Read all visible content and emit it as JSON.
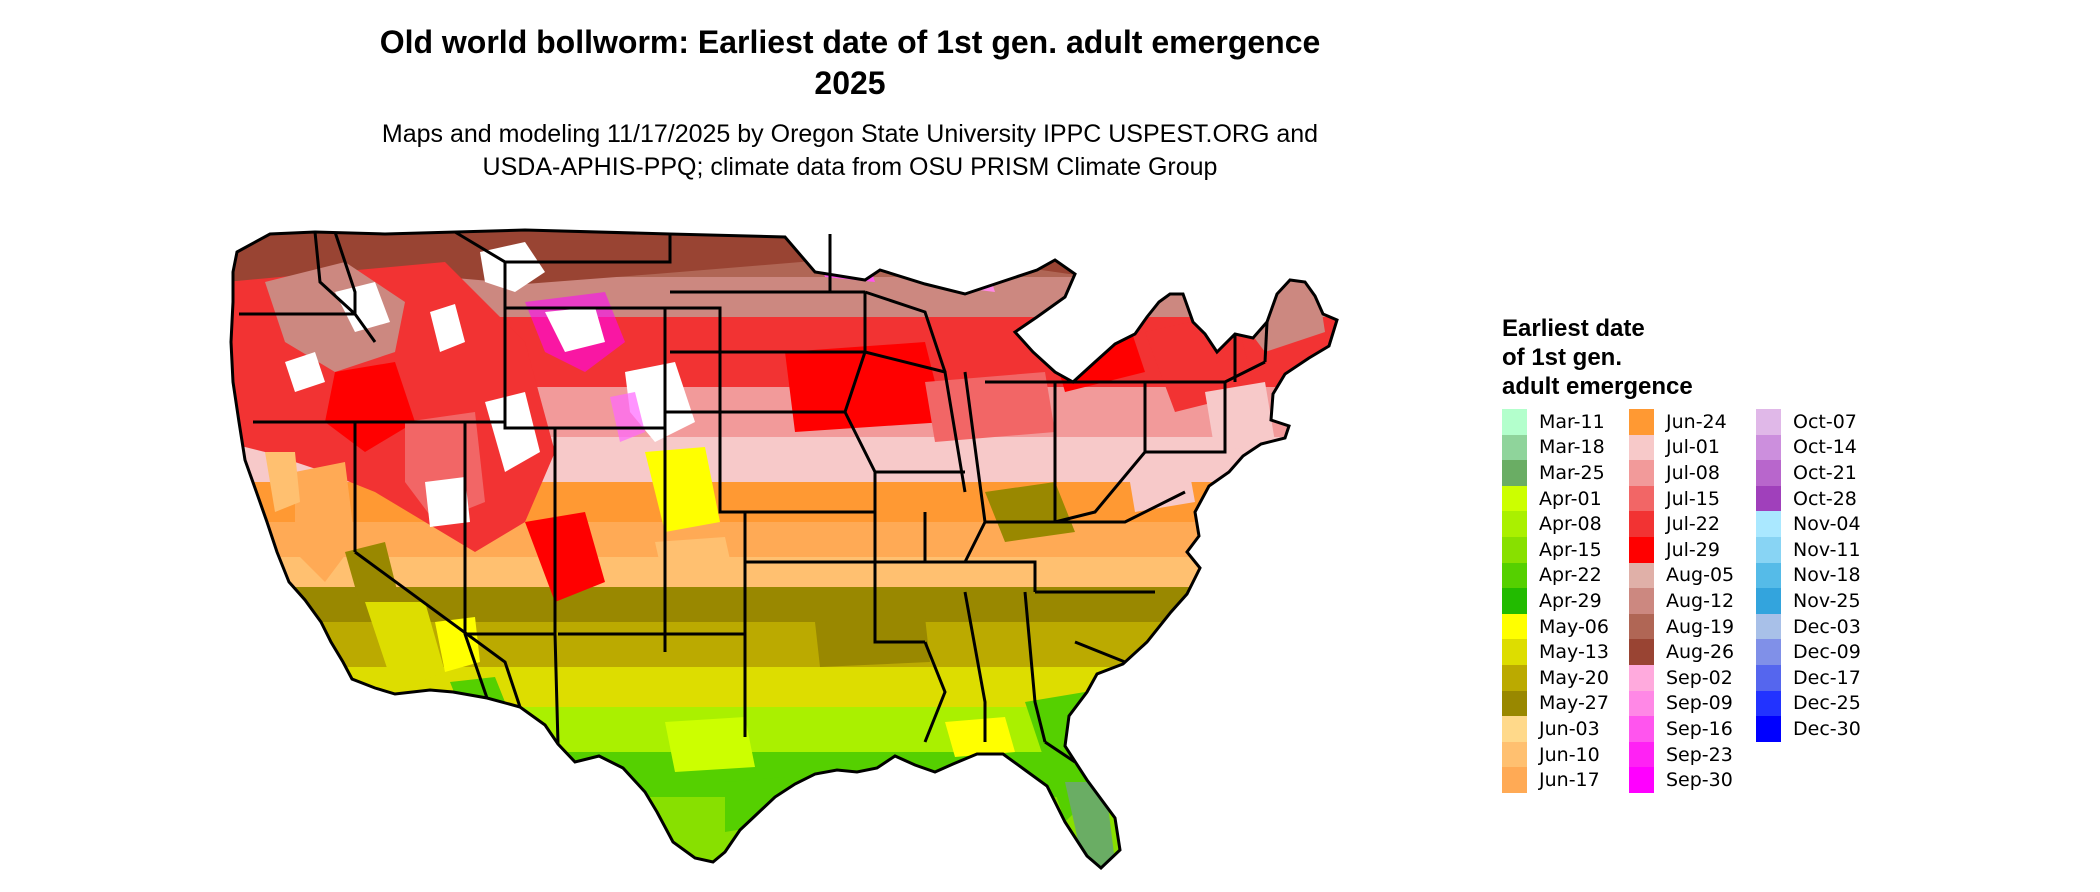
{
  "title": "Old world bollworm: Earliest date of 1st gen. adult emergence",
  "title_year": "2025",
  "subtitle_line1": "Maps and modeling 11/17/2025 by Oregon State University IPPC USPEST.ORG and",
  "subtitle_line2": "USDA-APHIS-PPQ; climate data from OSU PRISM Climate Group",
  "legend": {
    "title_line1": "Earliest date",
    "title_line2": "of 1st gen.",
    "title_line3": "adult emergence",
    "columns": [
      [
        {
          "label": "Mar-11",
          "color": "#b3ffcc"
        },
        {
          "label": "Mar-18",
          "color": "#8fd49b"
        },
        {
          "label": "Mar-25",
          "color": "#6aad64"
        },
        {
          "label": "Apr-01",
          "color": "#ccff00"
        },
        {
          "label": "Apr-08",
          "color": "#aaf000"
        },
        {
          "label": "Apr-15",
          "color": "#88e000"
        },
        {
          "label": "Apr-22",
          "color": "#55d000"
        },
        {
          "label": "Apr-29",
          "color": "#22bb00"
        },
        {
          "label": "May-06",
          "color": "#ffff00"
        },
        {
          "label": "May-13",
          "color": "#dddd00"
        },
        {
          "label": "May-20",
          "color": "#bbaa00"
        },
        {
          "label": "May-27",
          "color": "#998800"
        },
        {
          "label": "Jun-03",
          "color": "#ffd98a"
        },
        {
          "label": "Jun-10",
          "color": "#ffc070"
        },
        {
          "label": "Jun-17",
          "color": "#ffaa55"
        }
      ],
      [
        {
          "label": "Jun-24",
          "color": "#ff9933"
        },
        {
          "label": "Jul-01",
          "color": "#f7c9c9"
        },
        {
          "label": "Jul-08",
          "color": "#f29a9a"
        },
        {
          "label": "Jul-15",
          "color": "#f26666"
        },
        {
          "label": "Jul-22",
          "color": "#f23333"
        },
        {
          "label": "Jul-29",
          "color": "#ff0000"
        },
        {
          "label": "Aug-05",
          "color": "#e0b0a8"
        },
        {
          "label": "Aug-12",
          "color": "#cc8880"
        },
        {
          "label": "Aug-19",
          "color": "#b06655"
        },
        {
          "label": "Aug-26",
          "color": "#994433"
        },
        {
          "label": "Sep-02",
          "color": "#ffaadd"
        },
        {
          "label": "Sep-09",
          "color": "#ff88e6"
        },
        {
          "label": "Sep-16",
          "color": "#ff55ee"
        },
        {
          "label": "Sep-23",
          "color": "#ff22f4"
        },
        {
          "label": "Sep-30",
          "color": "#ff00ff"
        }
      ],
      [
        {
          "label": "Oct-07",
          "color": "#e0b8e8"
        },
        {
          "label": "Oct-14",
          "color": "#cc8fdd"
        },
        {
          "label": "Oct-21",
          "color": "#b866cc"
        },
        {
          "label": "Oct-28",
          "color": "#a040bb"
        },
        {
          "label": "Nov-04",
          "color": "#aae8ff"
        },
        {
          "label": "Nov-11",
          "color": "#88d4f4"
        },
        {
          "label": "Nov-18",
          "color": "#55bbe8"
        },
        {
          "label": "Nov-25",
          "color": "#33a4dd"
        },
        {
          "label": "Dec-03",
          "color": "#a8c0e8"
        },
        {
          "label": "Dec-09",
          "color": "#8090e8"
        },
        {
          "label": "Dec-17",
          "color": "#5566ee"
        },
        {
          "label": "Dec-25",
          "color": "#2233ff"
        },
        {
          "label": "Dec-30",
          "color": "#0000ff"
        }
      ]
    ]
  }
}
